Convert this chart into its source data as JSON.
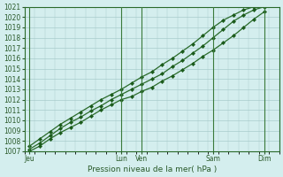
{
  "title": "",
  "xlabel": "Pression niveau de la mer( hPa )",
  "ylabel": "",
  "bg_color": "#d4eeee",
  "grid_color": "#a8cccc",
  "line_color": "#2a6b2a",
  "marker_color": "#1a5a1a",
  "ylim": [
    1007,
    1021
  ],
  "yticks": [
    1007,
    1008,
    1009,
    1010,
    1011,
    1012,
    1013,
    1014,
    1015,
    1016,
    1017,
    1018,
    1019,
    1020,
    1021
  ],
  "day_labels": [
    "Jeu",
    "Lun",
    "Ven",
    "Sam",
    "Dim"
  ],
  "day_positions": [
    0,
    9,
    11,
    18,
    23
  ],
  "xlim": [
    -0.5,
    24
  ],
  "vline_x": [
    0,
    9,
    11,
    18,
    23
  ],
  "series": [
    {
      "x": [
        0,
        1,
        2,
        3,
        4,
        5,
        6,
        7,
        8,
        9,
        10,
        11,
        12,
        13,
        14,
        15,
        16,
        17,
        18,
        19,
        20,
        21,
        22,
        23
      ],
      "y": [
        1007.0,
        1007.5,
        1008.2,
        1008.8,
        1009.3,
        1009.8,
        1010.4,
        1011.0,
        1011.5,
        1012.0,
        1012.3,
        1012.8,
        1013.2,
        1013.8,
        1014.3,
        1014.9,
        1015.5,
        1016.2,
        1016.8,
        1017.5,
        1018.2,
        1019.0,
        1019.8,
        1020.5
      ]
    },
    {
      "x": [
        0,
        1,
        2,
        3,
        4,
        5,
        6,
        7,
        8,
        9,
        10,
        11,
        12,
        13,
        14,
        15,
        16,
        17,
        18,
        19,
        20,
        21,
        22,
        23
      ],
      "y": [
        1007.2,
        1007.8,
        1008.5,
        1009.2,
        1009.8,
        1010.3,
        1010.9,
        1011.4,
        1012.0,
        1012.5,
        1013.0,
        1013.5,
        1014.0,
        1014.5,
        1015.2,
        1015.8,
        1016.5,
        1017.2,
        1018.0,
        1018.8,
        1019.6,
        1020.2,
        1020.7,
        1021.0
      ]
    },
    {
      "x": [
        0,
        1,
        2,
        3,
        4,
        5,
        6,
        7,
        8,
        9,
        10,
        11,
        12,
        13,
        14,
        15,
        16,
        17,
        18,
        19,
        20,
        21,
        22,
        23
      ],
      "y": [
        1007.5,
        1008.2,
        1008.9,
        1009.6,
        1010.2,
        1010.8,
        1011.4,
        1012.0,
        1012.5,
        1013.0,
        1013.6,
        1014.2,
        1014.7,
        1015.4,
        1016.0,
        1016.7,
        1017.4,
        1018.2,
        1019.0,
        1019.7,
        1020.2,
        1020.7,
        1021.0,
        1021.1
      ]
    }
  ]
}
